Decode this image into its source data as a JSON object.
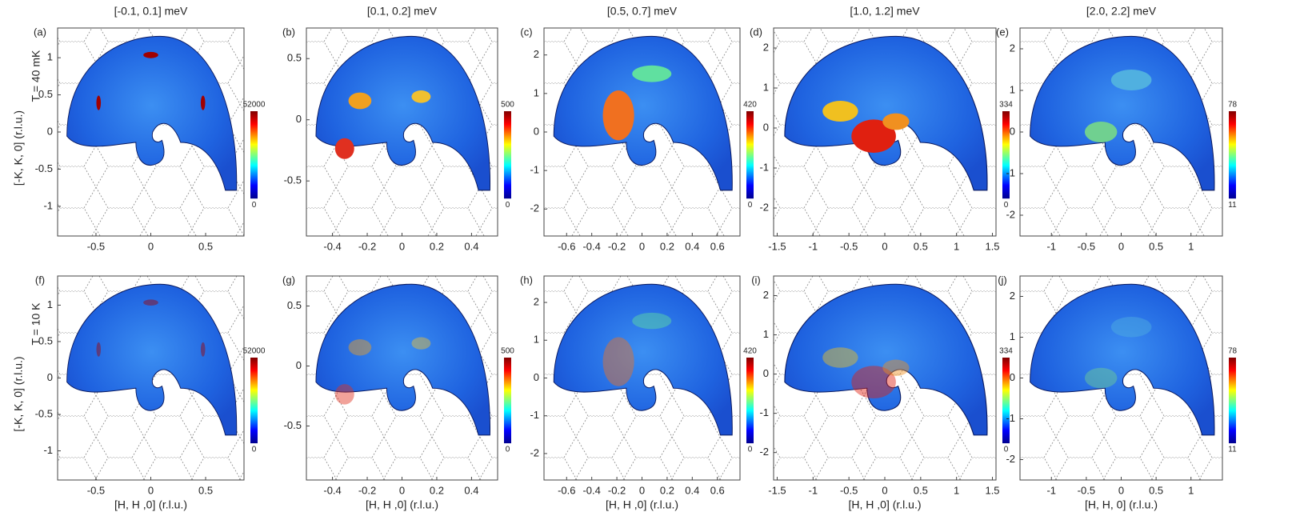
{
  "chart_data": [
    {
      "type": "heatmap",
      "panel_label": "(a)",
      "title": "[-0.1, 0.1] meV",
      "ylabel": "[-K, K, 0] (r.l.u.)",
      "annotation": "T = 40 mK",
      "xlim": [
        -0.85,
        0.85
      ],
      "ylim": [
        -1.4,
        1.4
      ],
      "xticks": [
        -0.5,
        0,
        0.5
      ],
      "yticks": [
        -1,
        -0.5,
        0,
        0.5,
        1
      ],
      "clim": [
        0,
        52000
      ]
    },
    {
      "type": "heatmap",
      "panel_label": "(b)",
      "title": "[0.1, 0.2] meV",
      "xlim": [
        -0.55,
        0.55
      ],
      "ylim": [
        -0.95,
        0.75
      ],
      "xticks": [
        -0.4,
        -0.2,
        0,
        0.2,
        0.4
      ],
      "yticks": [
        -0.5,
        0,
        0.5
      ],
      "clim": [
        0,
        500
      ]
    },
    {
      "type": "heatmap",
      "panel_label": "(c)",
      "title": "[0.5, 0.7] meV",
      "xlim": [
        -0.78,
        0.78
      ],
      "ylim": [
        -2.7,
        2.7
      ],
      "xticks": [
        -0.6,
        -0.4,
        -0.2,
        0,
        0.2,
        0.4,
        0.6
      ],
      "yticks": [
        -2,
        -1,
        0,
        1,
        2
      ],
      "clim": [
        0,
        420
      ]
    },
    {
      "type": "heatmap",
      "panel_label": "(d)",
      "title": "[1.0, 1.2] meV",
      "xlim": [
        -1.55,
        1.55
      ],
      "ylim": [
        -2.7,
        2.5
      ],
      "xticks": [
        -1.5,
        -1,
        -0.5,
        0,
        0.5,
        1,
        1.5
      ],
      "yticks": [
        -2,
        -1,
        0,
        1,
        2
      ],
      "clim": [
        0,
        334
      ]
    },
    {
      "type": "heatmap",
      "panel_label": "(e)",
      "title": "[2.0, 2.2] meV",
      "xlim": [
        -1.45,
        1.45
      ],
      "ylim": [
        -2.5,
        2.5
      ],
      "xticks": [
        -1,
        -0.5,
        0,
        0.5,
        1
      ],
      "yticks": [
        -2,
        -1,
        0,
        1,
        2
      ],
      "clim": [
        11,
        78
      ]
    },
    {
      "type": "heatmap",
      "panel_label": "(f)",
      "ylabel": "[-K, K, 0] (r.l.u.)",
      "annotation": "T = 10 K",
      "xlabel": "[H, H ,0] (r.l.u.)",
      "xlim": [
        -0.85,
        0.85
      ],
      "ylim": [
        -1.4,
        1.4
      ],
      "xticks": [
        -0.5,
        0,
        0.5
      ],
      "yticks": [
        -1,
        -0.5,
        0,
        0.5,
        1
      ],
      "clim": [
        0,
        52000
      ]
    },
    {
      "type": "heatmap",
      "panel_label": "(g)",
      "xlabel": "[H, H ,0] (r.l.u.)",
      "xlim": [
        -0.55,
        0.55
      ],
      "ylim": [
        -0.95,
        0.75
      ],
      "xticks": [
        -0.4,
        -0.2,
        0,
        0.2,
        0.4
      ],
      "yticks": [
        -0.5,
        0,
        0.5
      ],
      "clim": [
        0,
        500
      ]
    },
    {
      "type": "heatmap",
      "panel_label": "(h)",
      "xlabel": "[H, H ,0] (r.l.u.)",
      "xlim": [
        -0.78,
        0.78
      ],
      "ylim": [
        -2.7,
        2.7
      ],
      "xticks": [
        -0.6,
        -0.4,
        -0.2,
        0,
        0.2,
        0.4,
        0.6
      ],
      "yticks": [
        -2,
        -1,
        0,
        1,
        2
      ],
      "clim": [
        0,
        420
      ]
    },
    {
      "type": "heatmap",
      "panel_label": "(i)",
      "xlabel": "[H, H ,0] (r.l.u.)",
      "xlim": [
        -1.55,
        1.55
      ],
      "ylim": [
        -2.7,
        2.5
      ],
      "xticks": [
        -1.5,
        -1,
        -0.5,
        0,
        0.5,
        1,
        1.5
      ],
      "yticks": [
        -2,
        -1,
        0,
        1,
        2
      ],
      "clim": [
        0,
        334
      ]
    },
    {
      "type": "heatmap",
      "panel_label": "(j)",
      "xlabel": "[H, H, 0] (r.l.u.)",
      "xlim": [
        -1.45,
        1.45
      ],
      "ylim": [
        -2.5,
        2.5
      ],
      "xticks": [
        -1,
        -0.5,
        0,
        0.5,
        1
      ],
      "yticks": [
        -2,
        -1,
        0,
        1,
        2
      ],
      "clim": [
        11,
        78
      ]
    }
  ]
}
